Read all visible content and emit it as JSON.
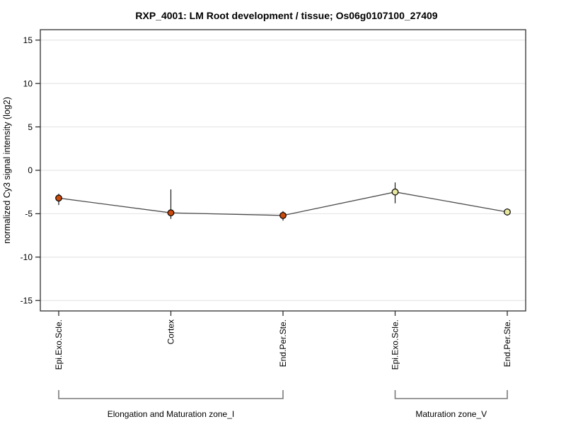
{
  "chart_data": {
    "type": "line",
    "title": "RXP_4001: LM Root development / tissue; Os06g0107100_27409",
    "ylabel": "normalized Cy3 signal intensity (log2)",
    "xlabel": "",
    "ylim": [
      -16.2,
      16.2
    ],
    "yticks": [
      -15,
      -10,
      -5,
      0,
      5,
      10,
      15
    ],
    "grid": true,
    "legend": "none",
    "categories": [
      "Epi.Exo.Scle.",
      "Cortex",
      "End.Per.Ste.",
      "Epi.Exo.Scle.",
      "End.Per.Ste."
    ],
    "values": [
      -3.2,
      -4.9,
      -5.2,
      -2.5,
      -4.8
    ],
    "error_top": [
      -2.7,
      -2.2,
      -4.7,
      -1.4,
      -4.4
    ],
    "error_bottom": [
      -4.0,
      -5.6,
      -5.8,
      -3.8,
      -5.2
    ],
    "point_groups": [
      0,
      0,
      0,
      1,
      1
    ],
    "groups": [
      {
        "label": "Elongation and Maturation zone_I",
        "start": 0,
        "end": 2
      },
      {
        "label": "Maturation zone_V",
        "start": 3,
        "end": 4
      }
    ],
    "colors": {
      "point_fill_group1": "#cc4a0c",
      "point_fill_group2": "#e7e79e",
      "point_stroke": "#000000",
      "line": "#4d4d4d",
      "error_bar": "#1a1a1a",
      "grid": "#e6e6e6",
      "frame": "#2e2e2e",
      "bracket": "#7a7a7a",
      "text": "#000000",
      "background": "#ffffff"
    }
  }
}
